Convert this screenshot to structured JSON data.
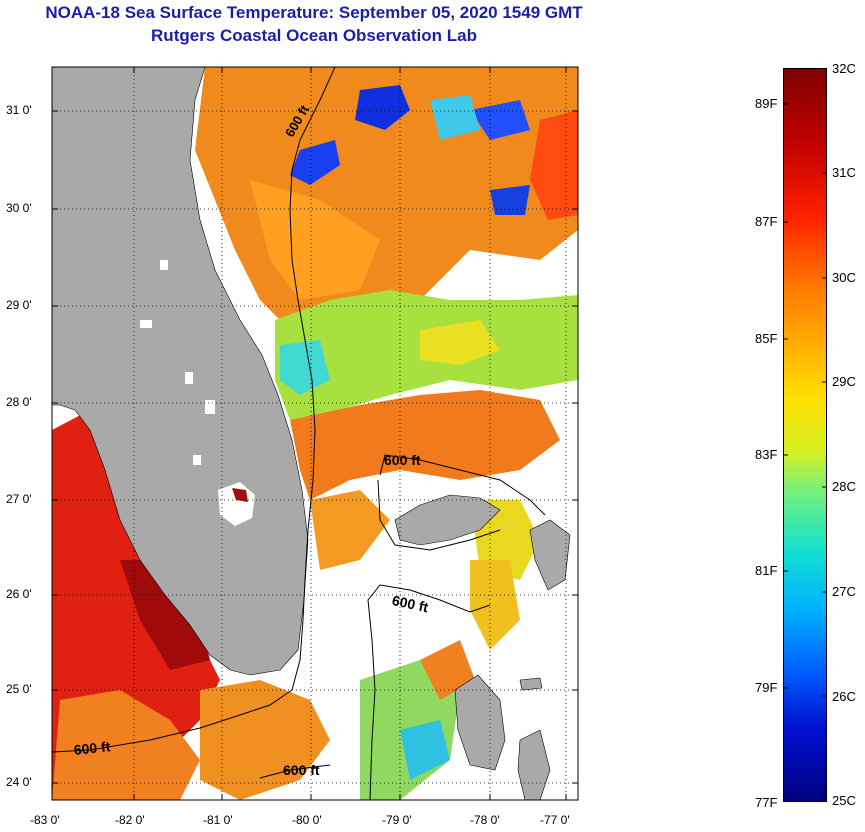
{
  "header": {
    "title": "NOAA-18 Sea Surface Temperature:  September 05, 2020 1549 GMT",
    "subtitle": "Rutgers Coastal Ocean Observation Lab"
  },
  "map": {
    "latitude_labels": [
      "31 0'",
      "30 0'",
      "29 0'",
      "28 0'",
      "27 0'",
      "26 0'",
      "25 0'",
      "24 0'"
    ],
    "longitude_labels": [
      "-83 0'",
      "-82 0'",
      "-81 0'",
      "-80 0'",
      "-79 0'",
      "-78 0'",
      "-77 0'"
    ],
    "contour_labels": [
      "600 ft",
      "600 ft",
      "600 ft",
      "600 ft",
      "600 ft"
    ]
  },
  "colorbar": {
    "celsius_labels": [
      "32C",
      "31C",
      "30C",
      "29C",
      "28C",
      "27C",
      "26C",
      "25C"
    ],
    "fahrenheit_labels": [
      "89F",
      "87F",
      "85F",
      "83F",
      "81F",
      "79F",
      "77F"
    ]
  },
  "colors": {
    "title": "#1b1fa8",
    "land": "#a9a9a9",
    "cloud": "#ffffff"
  }
}
